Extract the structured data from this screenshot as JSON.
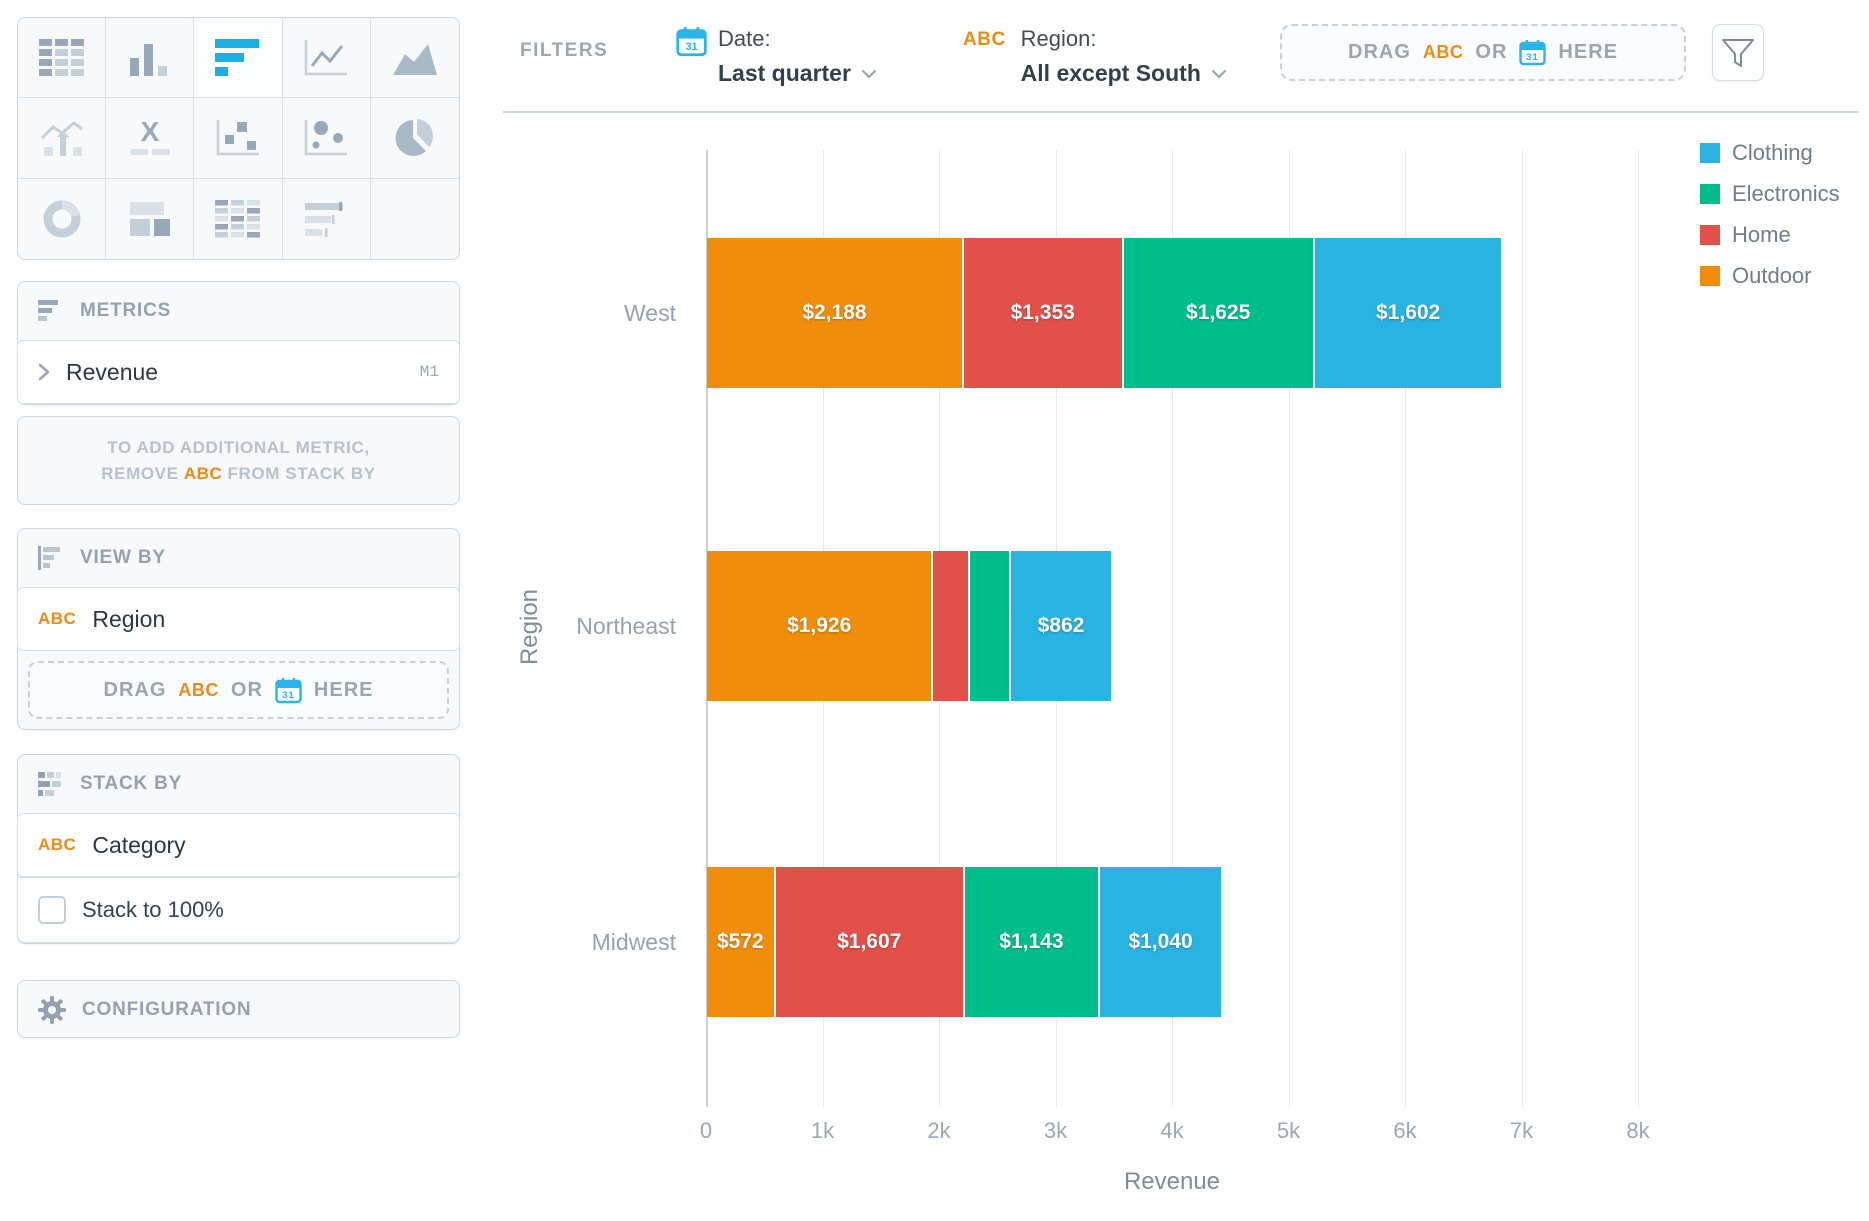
{
  "chart_picker": {
    "items": [
      "table",
      "column-chart",
      "horizontal-bar-chart",
      "line-chart",
      "area-chart",
      "trend-chart",
      "crosstab",
      "scatter-plot",
      "bubble-chart",
      "pie-chart",
      "donut-chart",
      "treemap",
      "pivot-table",
      "bullet-chart",
      "empty"
    ],
    "selected": "horizontal-bar-chart",
    "accent_color": "#1CB0E2"
  },
  "filters_bar": {
    "title": "FILTERS",
    "date_filter": {
      "label": "Date:",
      "value": "Last quarter",
      "icon": "calendar-icon"
    },
    "region_filter": {
      "label": "Region:",
      "value": "All except South",
      "icon": "abc-icon"
    },
    "drop_zone": {
      "drag": "DRAG",
      "abc": "ABC",
      "or": "OR",
      "here": "HERE"
    },
    "funnel_button": "filter-funnel"
  },
  "sidebar": {
    "metrics": {
      "title": "METRICS",
      "items": [
        {
          "label": "Revenue",
          "badge": "M1"
        }
      ],
      "hint_line1": "TO ADD ADDITIONAL METRIC,",
      "hint_remove": "REMOVE",
      "hint_abc": "ABC",
      "hint_rest": "FROM STACK BY"
    },
    "view_by": {
      "title": "VIEW BY",
      "items": [
        {
          "type": "ABC",
          "label": "Region"
        }
      ],
      "drop_zone": {
        "drag": "DRAG",
        "abc": "ABC",
        "or": "OR",
        "here": "HERE"
      }
    },
    "stack_by": {
      "title": "STACK BY",
      "items": [
        {
          "type": "ABC",
          "label": "Category"
        }
      ],
      "checkbox": {
        "label": "Stack to 100%",
        "checked": false
      }
    },
    "configuration": {
      "title": "CONFIGURATION"
    }
  },
  "chart_data": {
    "type": "bar",
    "orientation": "horizontal",
    "stacked": true,
    "title": "",
    "xlabel": "Revenue",
    "ylabel": "Region",
    "xlim": [
      0,
      8000
    ],
    "x_ticks": [
      "0",
      "1k",
      "2k",
      "3k",
      "4k",
      "5k",
      "6k",
      "7k",
      "8k"
    ],
    "grid": true,
    "legend_position": "top-right",
    "categories": [
      "West",
      "Northeast",
      "Midwest"
    ],
    "series": [
      {
        "name": "Outdoor",
        "color": "#F08D0B",
        "values": [
          2188,
          1926,
          572
        ]
      },
      {
        "name": "Home",
        "color": "#E2504A",
        "values": [
          1353,
          300,
          1607
        ]
      },
      {
        "name": "Electronics",
        "color": "#00BE8C",
        "values": [
          1625,
          330,
          1143
        ]
      },
      {
        "name": "Clothing",
        "color": "#29B3E2",
        "values": [
          1602,
          862,
          1040
        ]
      }
    ],
    "segment_labels": [
      [
        "$2,188",
        "$1,353",
        "$1,625",
        "$1,602"
      ],
      [
        "$1,926",
        "",
        "",
        "$862"
      ],
      [
        "$572",
        "$1,607",
        "$1,143",
        "$1,040"
      ]
    ],
    "legend": [
      {
        "label": "Clothing",
        "color": "#29B3E2"
      },
      {
        "label": "Electronics",
        "color": "#00BE8C"
      },
      {
        "label": "Home",
        "color": "#E2504A"
      },
      {
        "label": "Outdoor",
        "color": "#F08D0B"
      }
    ]
  }
}
